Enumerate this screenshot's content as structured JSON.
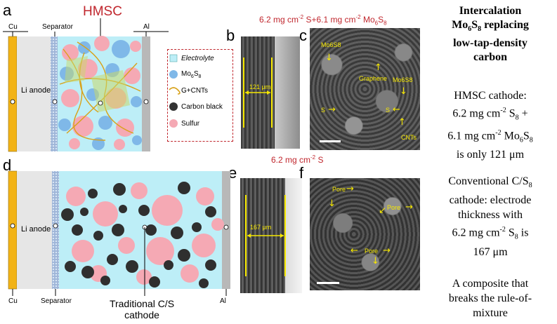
{
  "panels": {
    "a": "a",
    "b": "b",
    "c": "c",
    "d": "d",
    "e": "e",
    "f": "f"
  },
  "top_schematic": {
    "title": "HMSC",
    "cu": "Cu",
    "separator": "Separator",
    "al": "Al",
    "anode": "Li anode"
  },
  "bottom_schematic": {
    "cu": "Cu",
    "separator": "Separator",
    "al": "Al",
    "anode": "Li anode",
    "cathode_line1": "Traditional C/S",
    "cathode_line2": "cathode"
  },
  "legend": {
    "electrolyte": "Electrolyte",
    "mo6s8_prefix": "Mo",
    "mo6s8_sub1": "6",
    "mo6s8_mid": "S",
    "mo6s8_sub2": "8",
    "gcnt": "G+CNTs",
    "carbon_black": "Carbon black",
    "sulfur": "Sulfur"
  },
  "top_caption": {
    "p1": "6.2 mg cm",
    "sup1": "-2",
    "p2": " S+6.1 mg cm",
    "sup2": "-2",
    "p3": " Mo",
    "sub1": "6",
    "p4": "S",
    "sub2": "8"
  },
  "bottom_caption": {
    "p1": "6.2 mg cm",
    "sup1": "-2",
    "p2": " S"
  },
  "sem_b": {
    "thickness": "121 μm"
  },
  "sem_c": {
    "mo6s8_1": "Mo6S8",
    "graphene": "Graphene",
    "mo6s8_2": "Mo6S8",
    "s1": "S",
    "s2": "S",
    "cnts": "CNTs"
  },
  "sem_e": {
    "thickness": "167 μm"
  },
  "sem_f": {
    "pore1": "Pore",
    "pore2": "Pore",
    "pore3": "Pore"
  },
  "right_text": {
    "heading": {
      "l1": "Intercalation",
      "l2a": "Mo",
      "l2s1": "6",
      "l2b": "S",
      "l2s2": "8",
      "l2c": " replacing",
      "l3": "low-tap-density",
      "l4": "carbon"
    },
    "hmsc": {
      "l1": "HMSC cathode:",
      "l2a": "6.2 mg cm",
      "l2sup": "-2",
      "l2b": " S",
      "l2sub": "8",
      "l2c": " +",
      "l3a": "6.1 mg cm",
      "l3sup": "-2",
      "l3b": " Mo",
      "l3s1": "6",
      "l3c": "S",
      "l3s2": "8",
      "l4": "is only 121 μm"
    },
    "conv": {
      "l1a": "Conventional C/S",
      "l1sub": "8",
      "l2": "cathode: electrode",
      "l3": "thickness with",
      "l4a": "6.2 mg cm",
      "l4sup": "-2",
      "l4b": " S",
      "l4sub": "8",
      "l4c": " is",
      "l5": "167 μm"
    },
    "closing": {
      "l1": "A composite that",
      "l2": "breaks the rule-of-",
      "l3": "mixture"
    }
  },
  "colors": {
    "caption_red": "#c0262d",
    "sem_yellow": "#f6e800",
    "electrolyte": "#bdeef7",
    "current_collector_cu": "#f2b316",
    "current_collector_al": "#b8b8b8",
    "anode": "#e6e6e6",
    "sulfur": "#f5a9b4",
    "mo6s8": "#7fb8e8",
    "carbon": "#333333"
  }
}
